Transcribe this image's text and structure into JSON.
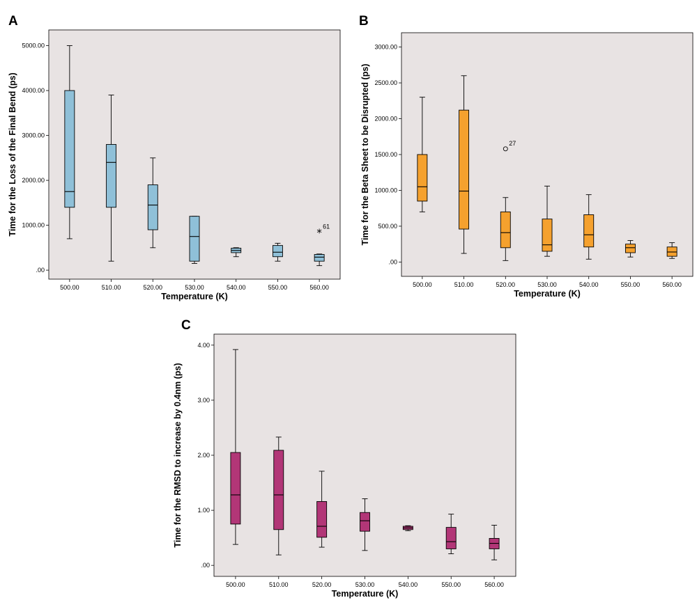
{
  "colors": {
    "plot_background": "#e8e3e3",
    "panel_A_box": "#8fc0d8",
    "panel_B_box": "#f5a12e",
    "panel_C_box": "#b23677"
  },
  "chart_data": [
    {
      "id": "A",
      "type": "box",
      "panel_label": "A",
      "xlabel": "Temperature (K)",
      "ylabel": "Time for the Loss of the Final Bend (ps)",
      "ylim": [
        -200,
        5350
      ],
      "yticks": [
        0,
        1000,
        2000,
        3000,
        4000,
        5000
      ],
      "ytick_labels": [
        ".00",
        "1000.00",
        "2000.00",
        "3000.00",
        "4000.00",
        "5000.00"
      ],
      "categories": [
        "500.00",
        "510.00",
        "520.00",
        "530.00",
        "540.00",
        "550.00",
        "560.00"
      ],
      "grid": false,
      "boxes": [
        {
          "min": 700,
          "q1": 1400,
          "median": 1750,
          "q3": 4000,
          "max": 5000
        },
        {
          "min": 200,
          "q1": 1400,
          "median": 2400,
          "q3": 2800,
          "max": 3900
        },
        {
          "min": 500,
          "q1": 900,
          "median": 1450,
          "q3": 1900,
          "max": 2500
        },
        {
          "min": 150,
          "q1": 200,
          "median": 750,
          "q3": 1200,
          "max": 1200
        },
        {
          "min": 300,
          "q1": 390,
          "median": 440,
          "q3": 490,
          "max": 500
        },
        {
          "min": 200,
          "q1": 300,
          "median": 400,
          "q3": 550,
          "max": 600
        },
        {
          "min": 100,
          "q1": 200,
          "median": 290,
          "q3": 350,
          "max": 360
        }
      ],
      "outliers": [
        {
          "category": "560.00",
          "value": 850,
          "symbol": "star",
          "label": "61"
        }
      ]
    },
    {
      "id": "B",
      "type": "box",
      "panel_label": "B",
      "xlabel": "Temperature (K)",
      "ylabel": "Time for the Beta Sheet to be Disrupted (ps)",
      "ylim": [
        -200,
        3200
      ],
      "yticks": [
        0,
        500,
        1000,
        1500,
        2000,
        2500,
        3000
      ],
      "ytick_labels": [
        ".00",
        "500.00",
        "1000.00",
        "1500.00",
        "2000.00",
        "2500.00",
        "3000.00"
      ],
      "categories": [
        "500.00",
        "510.00",
        "520.00",
        "530.00",
        "540.00",
        "550.00",
        "560.00"
      ],
      "grid": false,
      "boxes": [
        {
          "min": 700,
          "q1": 850,
          "median": 1050,
          "q3": 1500,
          "max": 2300
        },
        {
          "min": 120,
          "q1": 460,
          "median": 990,
          "q3": 2120,
          "max": 2600
        },
        {
          "min": 20,
          "q1": 200,
          "median": 410,
          "q3": 700,
          "max": 900
        },
        {
          "min": 80,
          "q1": 150,
          "median": 240,
          "q3": 600,
          "max": 1060
        },
        {
          "min": 40,
          "q1": 210,
          "median": 380,
          "q3": 660,
          "max": 940
        },
        {
          "min": 70,
          "q1": 130,
          "median": 200,
          "q3": 250,
          "max": 300
        },
        {
          "min": 50,
          "q1": 80,
          "median": 140,
          "q3": 210,
          "max": 270
        }
      ],
      "outliers": [
        {
          "category": "520.00",
          "value": 1580,
          "symbol": "circle",
          "label": "27"
        }
      ]
    },
    {
      "id": "C",
      "type": "box",
      "panel_label": "C",
      "xlabel": "Temperature (K)",
      "ylabel": "Time for the RMSD to increase by 0.4nm (ps)",
      "ylim": [
        -0.2,
        4.2
      ],
      "yticks": [
        0,
        1,
        2,
        3,
        4
      ],
      "ytick_labels": [
        ".00",
        "1.00",
        "2.00",
        "3.00",
        "4.00"
      ],
      "categories": [
        "500.00",
        "510.00",
        "520.00",
        "530.00",
        "540.00",
        "550.00",
        "560.00"
      ],
      "grid": false,
      "boxes": [
        {
          "min": 0.38,
          "q1": 0.75,
          "median": 1.28,
          "q3": 2.05,
          "max": 3.92
        },
        {
          "min": 0.19,
          "q1": 0.65,
          "median": 1.28,
          "q3": 2.09,
          "max": 2.33
        },
        {
          "min": 0.33,
          "q1": 0.51,
          "median": 0.71,
          "q3": 1.16,
          "max": 1.71
        },
        {
          "min": 0.27,
          "q1": 0.62,
          "median": 0.81,
          "q3": 0.96,
          "max": 1.21
        },
        {
          "min": 0.63,
          "q1": 0.65,
          "median": 0.68,
          "q3": 0.71,
          "max": 0.72
        },
        {
          "min": 0.21,
          "q1": 0.3,
          "median": 0.43,
          "q3": 0.69,
          "max": 0.93
        },
        {
          "min": 0.1,
          "q1": 0.3,
          "median": 0.4,
          "q3": 0.49,
          "max": 0.73
        }
      ],
      "outliers": []
    }
  ]
}
